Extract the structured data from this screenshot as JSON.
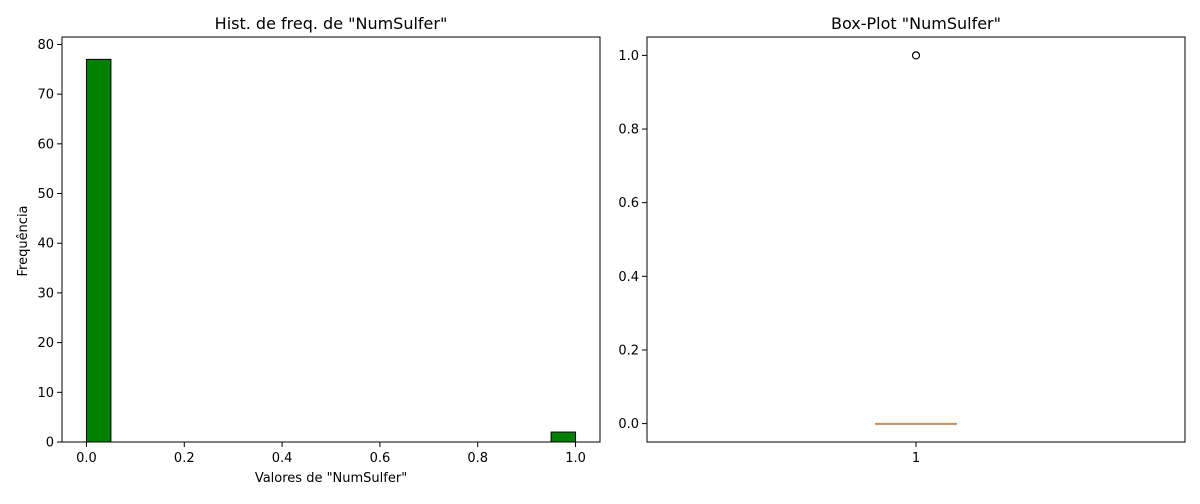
{
  "chart_data": [
    {
      "type": "bar",
      "title": "Hist. de freq. de \"NumSulfer\"",
      "xlabel": "Valores de \"NumSulfer\"",
      "ylabel": "Frequência",
      "xlim": [
        -0.05,
        1.05
      ],
      "ylim": [
        0,
        81.5
      ],
      "xticks": [
        0.0,
        0.2,
        0.4,
        0.6,
        0.8,
        1.0
      ],
      "xtick_labels": [
        "0.0",
        "0.2",
        "0.4",
        "0.6",
        "0.8",
        "1.0"
      ],
      "yticks": [
        0,
        10,
        20,
        30,
        40,
        50,
        60,
        70,
        80
      ],
      "ytick_labels": [
        "0",
        "10",
        "20",
        "30",
        "40",
        "50",
        "60",
        "70",
        "80"
      ],
      "bins": [
        {
          "start": 0.0,
          "end": 0.05,
          "count": 77
        },
        {
          "start": 0.05,
          "end": 0.1,
          "count": 0
        },
        {
          "start": 0.1,
          "end": 0.15,
          "count": 0
        },
        {
          "start": 0.15,
          "end": 0.2,
          "count": 0
        },
        {
          "start": 0.2,
          "end": 0.25,
          "count": 0
        },
        {
          "start": 0.25,
          "end": 0.3,
          "count": 0
        },
        {
          "start": 0.3,
          "end": 0.35,
          "count": 0
        },
        {
          "start": 0.35,
          "end": 0.4,
          "count": 0
        },
        {
          "start": 0.4,
          "end": 0.45,
          "count": 0
        },
        {
          "start": 0.45,
          "end": 0.5,
          "count": 0
        },
        {
          "start": 0.5,
          "end": 0.55,
          "count": 0
        },
        {
          "start": 0.55,
          "end": 0.6,
          "count": 0
        },
        {
          "start": 0.6,
          "end": 0.65,
          "count": 0
        },
        {
          "start": 0.65,
          "end": 0.7,
          "count": 0
        },
        {
          "start": 0.7,
          "end": 0.75,
          "count": 0
        },
        {
          "start": 0.75,
          "end": 0.8,
          "count": 0
        },
        {
          "start": 0.8,
          "end": 0.85,
          "count": 0
        },
        {
          "start": 0.85,
          "end": 0.9,
          "count": 0
        },
        {
          "start": 0.9,
          "end": 0.95,
          "count": 0
        },
        {
          "start": 0.95,
          "end": 1.0,
          "count": 2
        }
      ],
      "bar_color": "#008000",
      "edge_color": "#000000",
      "grid": false
    },
    {
      "type": "box",
      "title": "Box-Plot \"NumSulfer\"",
      "xlabel": "",
      "ylabel": "",
      "ylim": [
        -0.05,
        1.05
      ],
      "yticks": [
        0.0,
        0.2,
        0.4,
        0.6,
        0.8,
        1.0
      ],
      "ytick_labels": [
        "0.0",
        "0.2",
        "0.4",
        "0.6",
        "0.8",
        "1.0"
      ],
      "categories": [
        "1"
      ],
      "box": {
        "min": 0.0,
        "q1": 0.0,
        "median": 0.0,
        "q3": 0.0,
        "max": 0.0,
        "outliers": [
          1.0
        ]
      },
      "median_color": "#e08a3c",
      "grid": false
    }
  ]
}
